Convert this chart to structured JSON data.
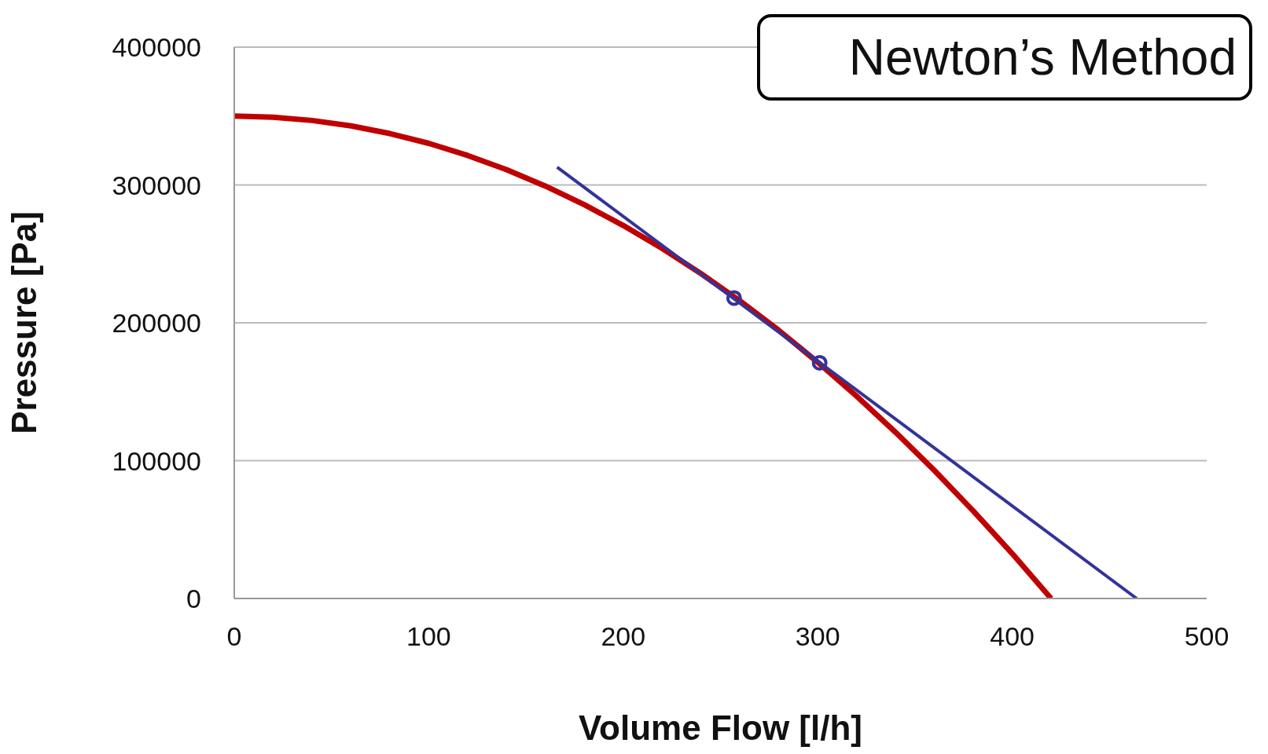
{
  "chart_data": {
    "type": "line",
    "title": "Newton’s Method",
    "xlabel": "Volume Flow  [l/h]",
    "ylabel": "Pressure  [Pa]",
    "xlim": [
      0,
      500
    ],
    "xticks": [
      0,
      100,
      200,
      300,
      400,
      500
    ],
    "ylim": [
      0,
      400000
    ],
    "yticks": [
      0,
      100000,
      200000,
      300000,
      400000
    ],
    "grid": "y",
    "legend": false,
    "series": [
      {
        "type": "line",
        "color": "#c00000",
        "marker": "none",
        "x": [
          0,
          20,
          40,
          60,
          80,
          100,
          120,
          140,
          160,
          180,
          200,
          220,
          240,
          260,
          280,
          300,
          320,
          340,
          360,
          380,
          400,
          420
        ],
        "values": [
          350000,
          349200,
          346800,
          342900,
          337300,
          330200,
          321400,
          311100,
          299200,
          285700,
          270600,
          254000,
          235700,
          215900,
          194500,
          171400,
          146800,
          120600,
          92900,
          63500,
          32600,
          0
        ]
      },
      {
        "type": "line",
        "color": "#333399",
        "marker": "none",
        "x": [
          166,
          464
        ],
        "values": [
          312900,
          0
        ]
      },
      {
        "type": "scatter",
        "color": "#333399",
        "marker": "circle",
        "x": [
          257,
          301
        ],
        "values": [
          218000,
          171000
        ]
      }
    ]
  }
}
